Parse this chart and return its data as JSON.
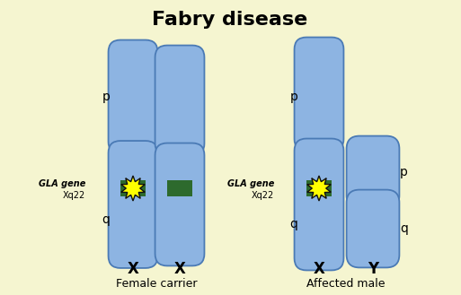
{
  "title": "Fabry disease",
  "title_fontsize": 16,
  "background_color": "#f5f5d0",
  "chrom_color": "#8db4e2",
  "chrom_edge_color": "#4a7ab5",
  "green_band_color": "#2d6a2d",
  "star_color": "#ffff00",
  "star_edge_color": "#111111",
  "label_color": "#000000",
  "labels": {
    "female_carrier": "Female carrier",
    "affected_male": "Affected male",
    "gla_gene": "GLA gene",
    "xq22": "Xq22",
    "p": "p",
    "q": "q",
    "X1": "X",
    "X2": "X",
    "X3": "X",
    "Y": "Y"
  }
}
